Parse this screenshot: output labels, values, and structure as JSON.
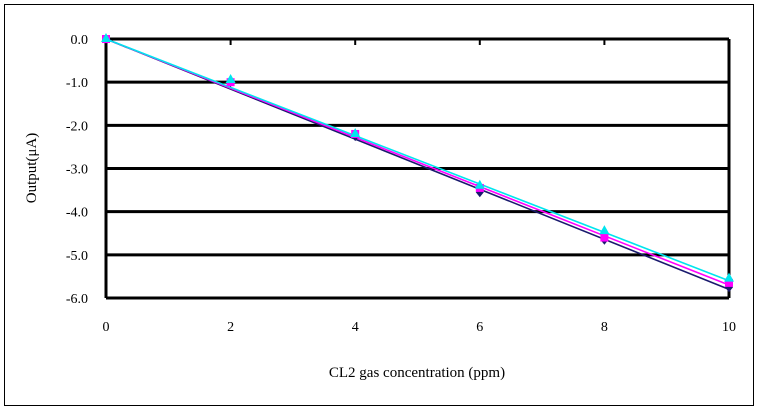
{
  "chart_data": {
    "type": "line",
    "title": "",
    "xlabel": "CL2 gas concentration (ppm)",
    "ylabel": "Output(μA)",
    "xlim": [
      0,
      10
    ],
    "ylim": [
      -6,
      0
    ],
    "xticks": [
      "0",
      "2",
      "4",
      "6",
      "8",
      "10"
    ],
    "yticks": [
      "0.0",
      "-1.0",
      "-2.0",
      "-3.0",
      "-4.0",
      "-5.0",
      "-6.0"
    ],
    "grid": "horizontal",
    "legend": "none",
    "x": [
      0,
      2,
      4,
      6,
      8,
      10
    ],
    "series": [
      {
        "name": "series-1",
        "color": "#1a1a6e",
        "marker": "diamond",
        "values": [
          0,
          -1.0,
          -2.25,
          -3.55,
          -4.65,
          -5.75
        ],
        "trend_slope": -0.58
      },
      {
        "name": "series-2",
        "color": "#ff00ff",
        "marker": "square",
        "values": [
          0,
          -1.0,
          -2.2,
          -3.45,
          -4.6,
          -5.65
        ],
        "trend_slope": -0.57
      },
      {
        "name": "series-3",
        "color": "#00e5ee",
        "marker": "triangle",
        "values": [
          0,
          -0.95,
          -2.2,
          -3.4,
          -4.45,
          -5.55
        ],
        "trend_slope": -0.56
      }
    ]
  }
}
